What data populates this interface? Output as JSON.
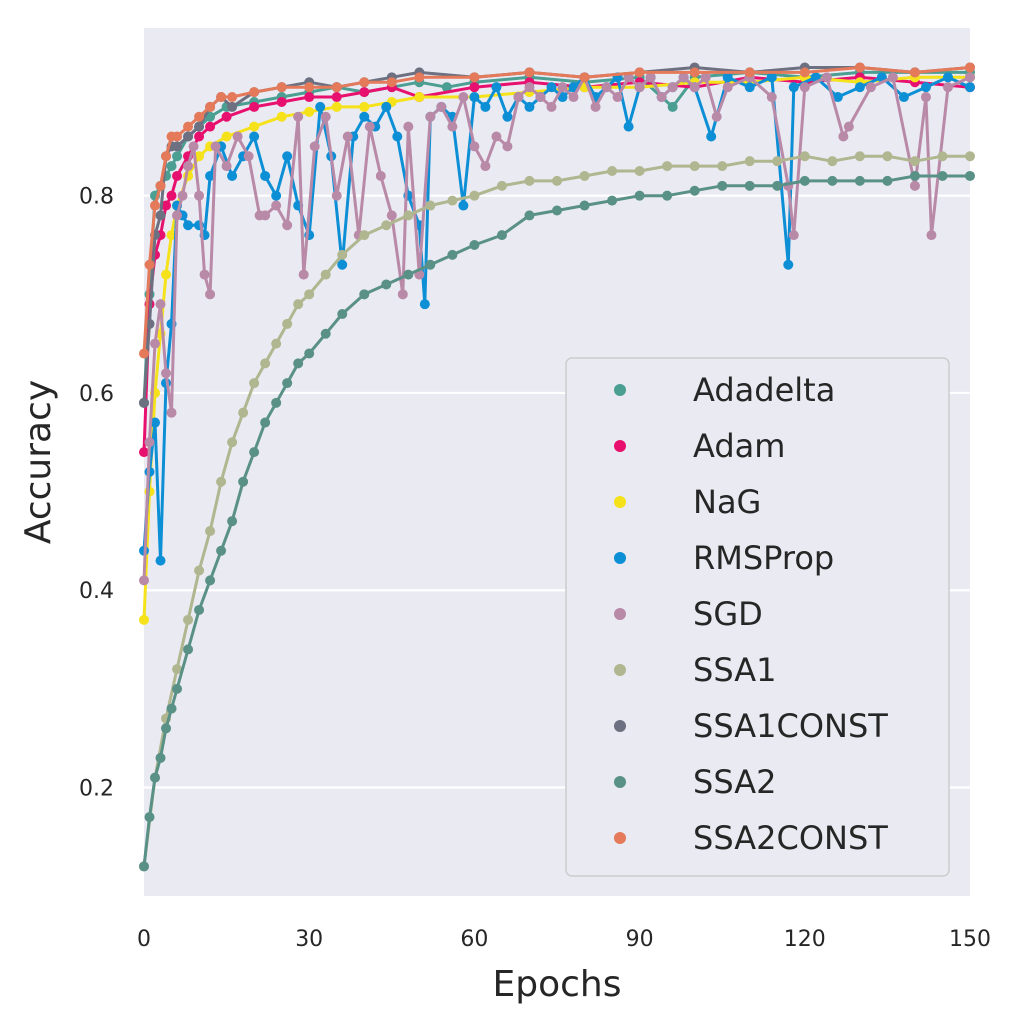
{
  "chart_data": {
    "type": "line",
    "title": "",
    "xlabel": "Epochs",
    "ylabel": "Accuracy",
    "xlim": [
      0,
      150
    ],
    "ylim": [
      0.09,
      0.97
    ],
    "xticks": [
      0,
      30,
      60,
      90,
      120,
      150
    ],
    "yticks": [
      0.2,
      0.4,
      0.6,
      0.8
    ],
    "ytick_labels": [
      "0.2",
      "0.4",
      "0.6",
      "0.8"
    ],
    "grid": true,
    "legend_position": "lower-right",
    "markers": true,
    "series": [
      {
        "name": "Adadelta",
        "color": "#4a9e92",
        "x": [
          0,
          1,
          2,
          3,
          4,
          5,
          6,
          8,
          10,
          12,
          15,
          20,
          25,
          30,
          35,
          40,
          45,
          50,
          55,
          60,
          70,
          80,
          90,
          96,
          100,
          110,
          120,
          130,
          140,
          150
        ],
        "y": [
          0.59,
          0.7,
          0.8,
          0.81,
          0.82,
          0.83,
          0.84,
          0.86,
          0.87,
          0.88,
          0.89,
          0.895,
          0.9,
          0.905,
          0.91,
          0.905,
          0.91,
          0.915,
          0.91,
          0.915,
          0.92,
          0.915,
          0.92,
          0.89,
          0.92,
          0.925,
          0.92,
          0.925,
          0.925,
          0.925
        ]
      },
      {
        "name": "Adam",
        "color": "#e8106e",
        "x": [
          0,
          1,
          2,
          3,
          4,
          5,
          6,
          8,
          10,
          12,
          15,
          20,
          25,
          30,
          35,
          40,
          45,
          50,
          60,
          70,
          80,
          90,
          100,
          110,
          120,
          130,
          140,
          150
        ],
        "y": [
          0.54,
          0.69,
          0.74,
          0.76,
          0.79,
          0.8,
          0.82,
          0.84,
          0.86,
          0.87,
          0.88,
          0.89,
          0.895,
          0.9,
          0.9,
          0.905,
          0.91,
          0.9,
          0.91,
          0.915,
          0.91,
          0.915,
          0.91,
          0.92,
          0.915,
          0.92,
          0.915,
          0.91
        ]
      },
      {
        "name": "NaG",
        "color": "#f5e21a",
        "x": [
          0,
          1,
          2,
          3,
          4,
          5,
          6,
          8,
          10,
          12,
          15,
          20,
          25,
          30,
          35,
          40,
          45,
          50,
          60,
          70,
          80,
          90,
          100,
          110,
          120,
          130,
          140,
          150
        ],
        "y": [
          0.37,
          0.5,
          0.6,
          0.66,
          0.72,
          0.76,
          0.79,
          0.82,
          0.84,
          0.85,
          0.86,
          0.87,
          0.88,
          0.885,
          0.89,
          0.89,
          0.895,
          0.9,
          0.9,
          0.905,
          0.91,
          0.91,
          0.915,
          0.915,
          0.92,
          0.915,
          0.92,
          0.92
        ]
      },
      {
        "name": "RMSProp",
        "color": "#0d8fd6",
        "x": [
          0,
          1,
          2,
          3,
          4,
          5,
          6,
          7,
          8,
          10,
          11,
          12,
          14,
          16,
          18,
          20,
          22,
          24,
          26,
          28,
          30,
          32,
          34,
          36,
          38,
          40,
          42,
          44,
          46,
          48,
          50,
          51,
          52,
          54,
          56,
          58,
          60,
          62,
          64,
          66,
          68,
          70,
          72,
          74,
          76,
          78,
          80,
          82,
          84,
          86,
          88,
          90,
          92,
          94,
          96,
          98,
          100,
          103,
          106,
          110,
          114,
          117,
          118,
          122,
          126,
          130,
          134,
          138,
          142,
          146,
          150
        ],
        "y": [
          0.44,
          0.52,
          0.57,
          0.43,
          0.61,
          0.67,
          0.79,
          0.78,
          0.77,
          0.77,
          0.76,
          0.82,
          0.85,
          0.82,
          0.84,
          0.86,
          0.82,
          0.8,
          0.84,
          0.79,
          0.76,
          0.89,
          0.84,
          0.73,
          0.86,
          0.88,
          0.87,
          0.89,
          0.86,
          0.8,
          0.77,
          0.69,
          0.88,
          0.89,
          0.88,
          0.79,
          0.9,
          0.89,
          0.91,
          0.88,
          0.9,
          0.89,
          0.9,
          0.91,
          0.9,
          0.91,
          0.92,
          0.9,
          0.91,
          0.92,
          0.87,
          0.91,
          0.92,
          0.9,
          0.91,
          0.92,
          0.91,
          0.86,
          0.92,
          0.91,
          0.92,
          0.73,
          0.91,
          0.92,
          0.9,
          0.91,
          0.92,
          0.9,
          0.91,
          0.92,
          0.91
        ]
      },
      {
        "name": "SGD",
        "color": "#b98aa8",
        "x": [
          0,
          1,
          2,
          3,
          4,
          5,
          6,
          7,
          8,
          9,
          10,
          11,
          12,
          13,
          15,
          17,
          19,
          21,
          22,
          24,
          26,
          28,
          29,
          31,
          33,
          35,
          37,
          39,
          41,
          43,
          45,
          47,
          48,
          50,
          52,
          54,
          56,
          58,
          60,
          62,
          64,
          66,
          68,
          70,
          72,
          74,
          76,
          78,
          80,
          82,
          84,
          86,
          88,
          90,
          92,
          94,
          96,
          98,
          100,
          102,
          104,
          106,
          110,
          114,
          117,
          118,
          120,
          124,
          127,
          128,
          132,
          136,
          140,
          142,
          143,
          146,
          150
        ],
        "y": [
          0.41,
          0.55,
          0.65,
          0.69,
          0.62,
          0.58,
          0.78,
          0.8,
          0.83,
          0.85,
          0.8,
          0.72,
          0.7,
          0.85,
          0.83,
          0.86,
          0.84,
          0.78,
          0.78,
          0.79,
          0.77,
          0.88,
          0.72,
          0.85,
          0.88,
          0.8,
          0.86,
          0.76,
          0.87,
          0.82,
          0.78,
          0.7,
          0.87,
          0.72,
          0.88,
          0.89,
          0.87,
          0.9,
          0.85,
          0.83,
          0.86,
          0.85,
          0.9,
          0.91,
          0.9,
          0.89,
          0.91,
          0.9,
          0.92,
          0.89,
          0.91,
          0.9,
          0.92,
          0.91,
          0.92,
          0.9,
          0.91,
          0.92,
          0.91,
          0.92,
          0.88,
          0.91,
          0.92,
          0.9,
          0.81,
          0.76,
          0.91,
          0.92,
          0.86,
          0.87,
          0.91,
          0.92,
          0.81,
          0.9,
          0.76,
          0.91,
          0.92
        ]
      },
      {
        "name": "SSA1",
        "color": "#b0b68f",
        "x": [
          0,
          2,
          4,
          6,
          8,
          10,
          12,
          14,
          16,
          18,
          20,
          22,
          24,
          26,
          28,
          30,
          33,
          36,
          40,
          44,
          48,
          52,
          56,
          60,
          65,
          70,
          75,
          80,
          85,
          90,
          95,
          100,
          105,
          110,
          115,
          120,
          125,
          130,
          135,
          140,
          145,
          150
        ],
        "y": [
          0.12,
          0.21,
          0.27,
          0.32,
          0.37,
          0.42,
          0.46,
          0.51,
          0.55,
          0.58,
          0.61,
          0.63,
          0.65,
          0.67,
          0.69,
          0.7,
          0.72,
          0.74,
          0.76,
          0.77,
          0.78,
          0.79,
          0.795,
          0.8,
          0.81,
          0.815,
          0.815,
          0.82,
          0.825,
          0.825,
          0.83,
          0.83,
          0.83,
          0.835,
          0.835,
          0.84,
          0.835,
          0.84,
          0.84,
          0.835,
          0.84,
          0.84
        ]
      },
      {
        "name": "SSA1CONST",
        "color": "#6d7080",
        "x": [
          0,
          1,
          2,
          3,
          4,
          5,
          6,
          8,
          10,
          12,
          14,
          16,
          20,
          25,
          30,
          35,
          40,
          45,
          50,
          60,
          70,
          80,
          90,
          100,
          110,
          120,
          130,
          140,
          150
        ],
        "y": [
          0.59,
          0.67,
          0.76,
          0.78,
          0.84,
          0.85,
          0.85,
          0.86,
          0.87,
          0.89,
          0.9,
          0.89,
          0.905,
          0.91,
          0.915,
          0.91,
          0.915,
          0.92,
          0.925,
          0.92,
          0.925,
          0.92,
          0.925,
          0.93,
          0.925,
          0.93,
          0.93,
          0.925,
          0.93
        ]
      },
      {
        "name": "SSA2",
        "color": "#5a9186",
        "x": [
          0,
          1,
          2,
          3,
          4,
          5,
          6,
          8,
          10,
          12,
          14,
          16,
          18,
          20,
          22,
          24,
          26,
          28,
          30,
          33,
          36,
          40,
          44,
          48,
          52,
          56,
          60,
          65,
          70,
          75,
          80,
          85,
          90,
          95,
          100,
          105,
          110,
          115,
          120,
          125,
          130,
          135,
          140,
          145,
          150
        ],
        "y": [
          0.12,
          0.17,
          0.21,
          0.23,
          0.26,
          0.28,
          0.3,
          0.34,
          0.38,
          0.41,
          0.44,
          0.47,
          0.51,
          0.54,
          0.57,
          0.59,
          0.61,
          0.63,
          0.64,
          0.66,
          0.68,
          0.7,
          0.71,
          0.72,
          0.73,
          0.74,
          0.75,
          0.76,
          0.78,
          0.785,
          0.79,
          0.795,
          0.8,
          0.8,
          0.805,
          0.81,
          0.81,
          0.81,
          0.815,
          0.815,
          0.815,
          0.815,
          0.82,
          0.82,
          0.82
        ]
      },
      {
        "name": "SSA2CONST",
        "color": "#e47a5a",
        "x": [
          0,
          1,
          2,
          3,
          4,
          5,
          6,
          8,
          10,
          12,
          14,
          16,
          20,
          25,
          30,
          35,
          40,
          45,
          50,
          60,
          70,
          80,
          90,
          100,
          110,
          120,
          130,
          140,
          150
        ],
        "y": [
          0.64,
          0.73,
          0.79,
          0.81,
          0.84,
          0.86,
          0.86,
          0.87,
          0.88,
          0.89,
          0.9,
          0.9,
          0.905,
          0.91,
          0.91,
          0.91,
          0.915,
          0.915,
          0.92,
          0.92,
          0.925,
          0.92,
          0.925,
          0.925,
          0.925,
          0.925,
          0.93,
          0.925,
          0.93
        ]
      }
    ]
  }
}
